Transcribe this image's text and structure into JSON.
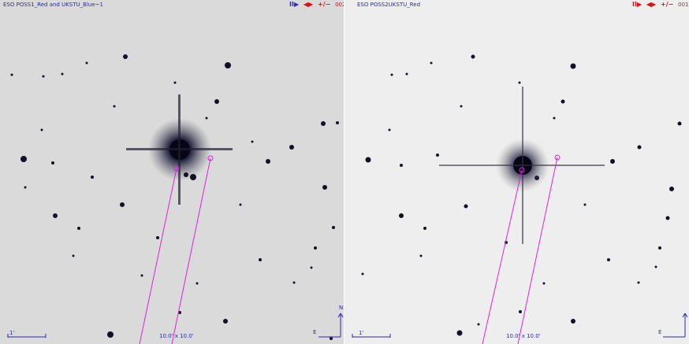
{
  "left_panel": {
    "title": "ESO POSS1_Red and UKSTU_Blue~1",
    "frame": "002",
    "scale_label": "1'",
    "fov": "10.0' x 10.0'",
    "compass_east": "E",
    "compass_north": "N"
  },
  "right_panel": {
    "title": "ESO POSS2UKSTU_Red",
    "frame": "001",
    "scale_label": "1'",
    "fov": "10.0' x 10.0'",
    "compass_east": "E"
  },
  "controls": {
    "pause_play": "II▶",
    "step": "◀▶",
    "zoom": "+/−"
  },
  "colors": {
    "annotation_blue": "#2828b4",
    "overlay_magenta": "#e020e0",
    "control_red": "#e01010",
    "control_blue": "#2a2ad0",
    "star": "#101028"
  }
}
